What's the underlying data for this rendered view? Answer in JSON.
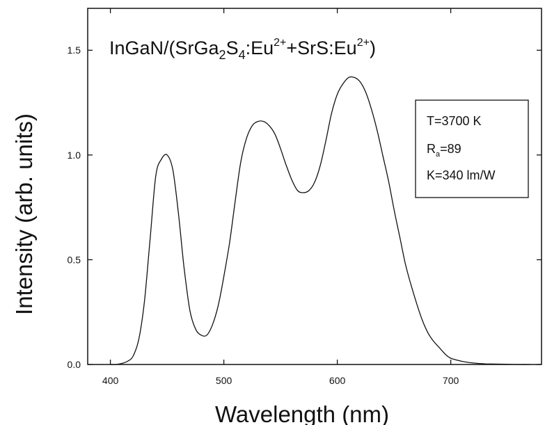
{
  "chart_data": {
    "type": "line",
    "title": {
      "prefix": "InGaN/(SrGa",
      "sub1": "2",
      "mid1": "S",
      "sub2": "4",
      "mid2": ":Eu",
      "sup1": "2+",
      "mid3": "+SrS:Eu",
      "sup2": "2+",
      "suffix": ")"
    },
    "xlabel": "Wavelength (nm)",
    "ylabel": "Intensity (arb. units)",
    "xlim": [
      380,
      780
    ],
    "ylim": [
      0,
      1.7
    ],
    "x_ticks": [
      400,
      500,
      600,
      700
    ],
    "x_tick_labels": [
      "400",
      "500",
      "600",
      "700"
    ],
    "y_ticks": [
      0.0,
      0.5,
      1.0,
      1.5
    ],
    "y_tick_labels": [
      "0.0",
      "0.5",
      "1.0",
      "1.5"
    ],
    "grid": false,
    "legend_box": {
      "line1": "T=3700 K",
      "line2_main": "R",
      "line2_sub": "a",
      "line2_rest": "=89",
      "line3": "K=340 lm/W",
      "placement": "right"
    },
    "series": [
      {
        "x": [
          400,
          405,
          410,
          415,
          420,
          425,
          430,
          435,
          440,
          445,
          450,
          455,
          460,
          465,
          470,
          475,
          480,
          485,
          490,
          495,
          500,
          505,
          510,
          515,
          520,
          525,
          530,
          535,
          540,
          545,
          550,
          555,
          560,
          565,
          570,
          575,
          580,
          585,
          590,
          595,
          600,
          605,
          610,
          615,
          620,
          625,
          630,
          635,
          640,
          645,
          650,
          655,
          660,
          665,
          670,
          675,
          680,
          685,
          690,
          695,
          700,
          710,
          720,
          730,
          740,
          750,
          760,
          770
        ],
        "values": [
          0.0,
          0.0,
          0.005,
          0.015,
          0.04,
          0.12,
          0.3,
          0.6,
          0.9,
          0.98,
          1.0,
          0.93,
          0.72,
          0.46,
          0.26,
          0.17,
          0.14,
          0.14,
          0.19,
          0.28,
          0.42,
          0.58,
          0.78,
          0.97,
          1.08,
          1.14,
          1.16,
          1.16,
          1.14,
          1.1,
          1.03,
          0.95,
          0.88,
          0.83,
          0.82,
          0.83,
          0.87,
          0.95,
          1.07,
          1.2,
          1.29,
          1.34,
          1.37,
          1.37,
          1.35,
          1.3,
          1.22,
          1.12,
          1.0,
          0.88,
          0.74,
          0.61,
          0.48,
          0.38,
          0.29,
          0.21,
          0.15,
          0.11,
          0.08,
          0.05,
          0.03,
          0.015,
          0.007,
          0.003,
          0.002,
          0.001,
          0.0,
          0.0
        ]
      }
    ]
  }
}
